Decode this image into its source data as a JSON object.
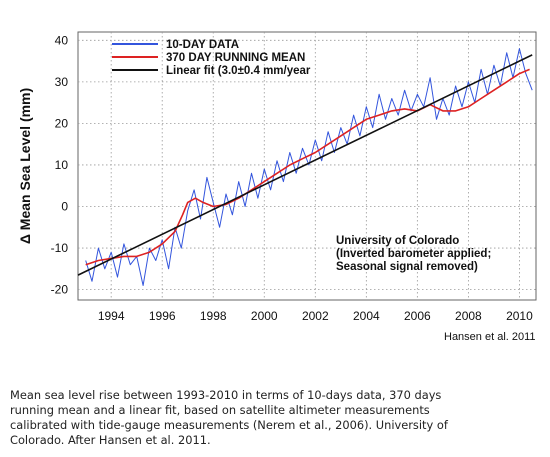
{
  "chart_data": {
    "type": "line",
    "ylabel": "Δ Mean Sea Level (mm)",
    "xlabel": "",
    "xlim": [
      1992.7,
      2010.65
    ],
    "ylim": [
      -22.5,
      42
    ],
    "x_ticks": [
      1994,
      1996,
      1998,
      2000,
      2002,
      2004,
      2006,
      2008,
      2010
    ],
    "y_ticks": [
      -20,
      -10,
      0,
      10,
      20,
      30,
      40
    ],
    "grid": true,
    "legend_position": "top-left",
    "series": [
      {
        "name": "10-DAY DATA",
        "color": "#3355dd",
        "x": [
          1993.0,
          1993.25,
          1993.5,
          1993.75,
          1994.0,
          1994.25,
          1994.5,
          1994.75,
          1995.0,
          1995.25,
          1995.5,
          1995.75,
          1996.0,
          1996.25,
          1996.5,
          1996.75,
          1997.0,
          1997.25,
          1997.5,
          1997.75,
          1998.0,
          1998.25,
          1998.5,
          1998.75,
          1999.0,
          1999.25,
          1999.5,
          1999.75,
          2000.0,
          2000.25,
          2000.5,
          2000.75,
          2001.0,
          2001.25,
          2001.5,
          2001.75,
          2002.0,
          2002.25,
          2002.5,
          2002.75,
          2003.0,
          2003.25,
          2003.5,
          2003.75,
          2004.0,
          2004.25,
          2004.5,
          2004.75,
          2005.0,
          2005.25,
          2005.5,
          2005.75,
          2006.0,
          2006.25,
          2006.5,
          2006.75,
          2007.0,
          2007.25,
          2007.5,
          2007.75,
          2008.0,
          2008.25,
          2008.5,
          2008.75,
          2009.0,
          2009.25,
          2009.5,
          2009.75,
          2010.0,
          2010.25,
          2010.5
        ],
        "y": [
          -13,
          -18,
          -10,
          -15,
          -11,
          -17,
          -9,
          -14,
          -12,
          -19,
          -10,
          -13,
          -8,
          -15,
          -5,
          -10,
          -1,
          4,
          -3,
          7,
          1,
          -5,
          3,
          -2,
          6,
          0,
          8,
          2,
          9,
          4,
          11,
          6,
          13,
          8,
          14,
          10,
          16,
          11,
          18,
          13,
          19,
          15,
          22,
          17,
          24,
          19,
          27,
          21,
          26,
          22,
          28,
          23,
          27,
          24,
          31,
          21,
          26,
          22,
          29,
          24,
          30,
          25,
          33,
          27,
          34,
          29,
          37,
          31,
          38,
          32,
          28
        ]
      },
      {
        "name": "370 DAY RUNNING MEAN",
        "color": "#dd2222",
        "x": [
          1993.0,
          1993.5,
          1994.0,
          1994.5,
          1995.0,
          1995.5,
          1996.0,
          1996.5,
          1996.8,
          1997.0,
          1997.3,
          1997.6,
          1998.0,
          1998.5,
          1999.0,
          1999.5,
          2000.0,
          2000.5,
          2001.0,
          2001.5,
          2002.0,
          2002.5,
          2003.0,
          2003.5,
          2004.0,
          2004.5,
          2005.0,
          2005.5,
          2006.0,
          2006.5,
          2007.0,
          2007.5,
          2008.0,
          2008.5,
          2009.0,
          2009.5,
          2010.0,
          2010.4
        ],
        "y": [
          -14,
          -13,
          -12.5,
          -12,
          -12,
          -11,
          -9,
          -6,
          -2,
          1,
          2,
          1,
          0,
          0.5,
          2,
          4,
          6,
          8,
          10,
          11.5,
          13,
          15,
          17,
          19,
          21,
          22,
          23,
          23.5,
          23,
          24.5,
          23,
          23,
          24,
          26,
          28,
          30,
          32,
          33
        ]
      },
      {
        "name": "Linear fit (3.0±0.4 mm/year",
        "color": "#111111",
        "x": [
          1992.7,
          2010.5
        ],
        "y": [
          -16.5,
          36.5
        ]
      }
    ],
    "annotation": [
      "University of Colorado",
      "(Inverted barometer applied;",
      "Seasonal signal removed)"
    ]
  },
  "credit": "Hansen et al. 2011",
  "caption": {
    "lines": [
      "Mean sea level rise between 1993-2010  in terms of 10-days data, 370 days",
      "running mean and a linear fit, based on satellite altimeter measurements",
      "calibrated with tide-gauge measurements (Nerem et al., 2006).  University of",
      "Colorado. After Hansen et al. 2011."
    ]
  }
}
